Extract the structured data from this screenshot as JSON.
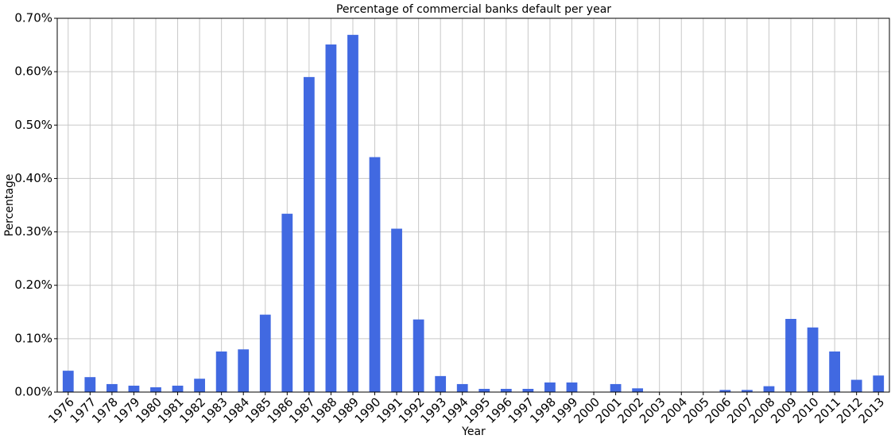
{
  "chart_data": {
    "type": "bar",
    "title": "Percentage of commercial banks default per year",
    "x_label": "Year",
    "y_label": "Percentage",
    "categories": [
      "1976",
      "1977",
      "1978",
      "1979",
      "1980",
      "1981",
      "1982",
      "1983",
      "1984",
      "1985",
      "1986",
      "1987",
      "1988",
      "1989",
      "1990",
      "1991",
      "1992",
      "1993",
      "1994",
      "1995",
      "1996",
      "1997",
      "1998",
      "1999",
      "2000",
      "2001",
      "2002",
      "2003",
      "2004",
      "2005",
      "2006",
      "2007",
      "2008",
      "2009",
      "2010",
      "2011",
      "2012",
      "2013"
    ],
    "values": [
      0.04,
      0.028,
      0.015,
      0.012,
      0.009,
      0.012,
      0.025,
      0.076,
      0.08,
      0.145,
      0.334,
      0.59,
      0.651,
      0.669,
      0.44,
      0.306,
      0.136,
      0.03,
      0.015,
      0.006,
      0.006,
      0.006,
      0.018,
      0.018,
      0,
      0.015,
      0.007,
      0,
      0,
      0,
      0.004,
      0.004,
      0.011,
      0.137,
      0.121,
      0.076,
      0.023,
      0.031
    ],
    "color": "#4169e1",
    "ylim": [
      0,
      0.7
    ],
    "yticks": [
      {
        "value": 0,
        "label": "0.00%"
      },
      {
        "value": 0.1,
        "label": "0.10%"
      },
      {
        "value": 0.2,
        "label": "0.20%"
      },
      {
        "value": 0.3,
        "label": "0.30%"
      },
      {
        "value": 0.4,
        "label": "0.40%"
      },
      {
        "value": 0.5,
        "label": "0.50%"
      },
      {
        "value": 0.6,
        "label": "0.60%"
      },
      {
        "value": 0.7,
        "label": "0.70%"
      }
    ],
    "grid": true
  }
}
